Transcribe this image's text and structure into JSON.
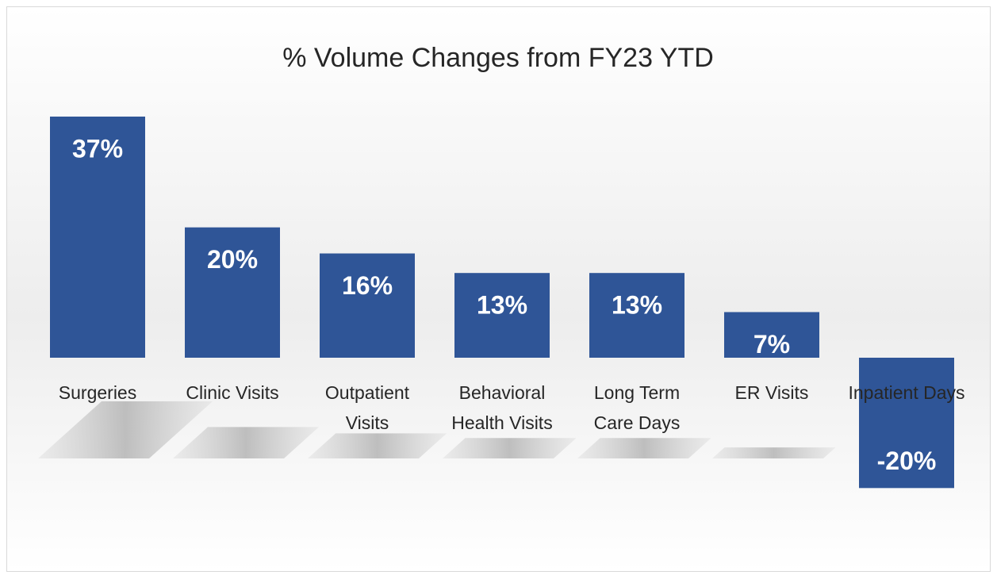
{
  "chart_data": {
    "type": "bar",
    "title": "% Volume Changes from FY23 YTD",
    "categories": [
      "Surgeries",
      "Clinic Visits",
      "Outpatient Visits",
      "Behavioral Health Visits",
      "Long Term Care Days",
      "ER Visits",
      "Inpatient Days"
    ],
    "values": [
      37,
      20,
      16,
      13,
      13,
      7,
      -20
    ],
    "value_labels": [
      "37%",
      "20%",
      "16%",
      "13%",
      "13%",
      "7%",
      "-20%"
    ],
    "color": "#2f5597"
  }
}
